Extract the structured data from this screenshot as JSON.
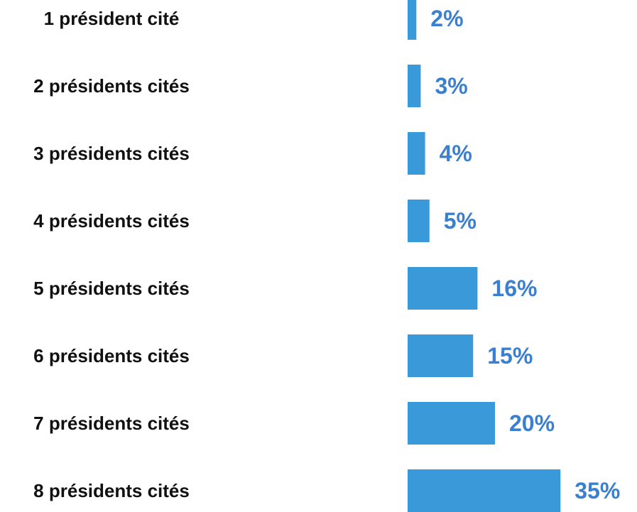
{
  "chart_data": {
    "type": "bar",
    "orientation": "horizontal",
    "categories": [
      "1 président cité",
      "2 présidents cités",
      "3 présidents cités",
      "4 présidents cités",
      "5 présidents cités",
      "6 présidents cités",
      "7 présidents cités",
      "8 présidents cités"
    ],
    "values": [
      2,
      3,
      4,
      5,
      16,
      15,
      20,
      35
    ],
    "value_labels": [
      "2%",
      "3%",
      "4%",
      "5%",
      "16%",
      "15%",
      "20%",
      "35%"
    ],
    "unit": "%",
    "title": "",
    "xlabel": "",
    "ylabel": "",
    "grid": false,
    "legend": "none"
  },
  "colors": {
    "bar": "#3a9ad9",
    "value_label": "#3a7fd0",
    "category_label": "#111111"
  }
}
